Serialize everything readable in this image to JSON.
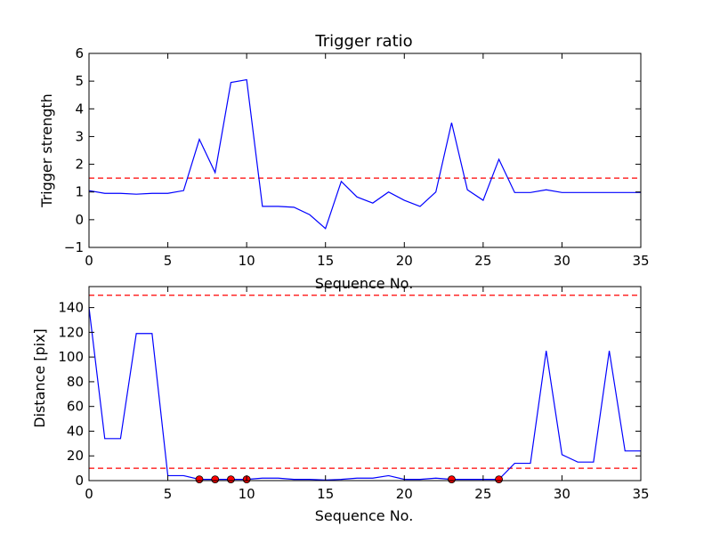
{
  "colors": {
    "line": "#0000ff",
    "threshold": "#ff0000",
    "marker": "#ff0000",
    "axes": "#000000"
  },
  "chart_data": [
    {
      "type": "line",
      "title": "Trigger ratio",
      "xlabel": "Sequence No.",
      "ylabel": "Trigger strength",
      "xlim": [
        0,
        35
      ],
      "ylim": [
        -1,
        6
      ],
      "xticks": [
        "0",
        "5",
        "10",
        "15",
        "20",
        "25",
        "30",
        "35"
      ],
      "yticks": [
        "−1",
        "0",
        "1",
        "2",
        "3",
        "4",
        "5",
        "6"
      ],
      "grid": false,
      "x": [
        0,
        1,
        2,
        3,
        4,
        5,
        6,
        7,
        8,
        9,
        10,
        11,
        12,
        13,
        14,
        15,
        16,
        17,
        18,
        19,
        20,
        21,
        22,
        23,
        24,
        25,
        26,
        27,
        28,
        29,
        30,
        31,
        32,
        33,
        34,
        35
      ],
      "values": [
        1.05,
        0.95,
        0.95,
        0.92,
        0.95,
        0.95,
        1.05,
        2.9,
        1.7,
        4.95,
        5.05,
        0.48,
        0.48,
        0.45,
        0.18,
        -0.32,
        1.38,
        0.82,
        0.6,
        1.0,
        0.7,
        0.48,
        1.0,
        3.5,
        1.08,
        0.7,
        2.18,
        0.98,
        0.98,
        1.08,
        0.98,
        0.98,
        0.98,
        0.98,
        0.98,
        0.98
      ],
      "threshold": 1.5
    },
    {
      "type": "line",
      "xlabel": "Sequence No.",
      "ylabel": "Distance [pix]",
      "xlim": [
        0,
        35
      ],
      "ylim": [
        0,
        157
      ],
      "xticks": [
        "0",
        "5",
        "10",
        "15",
        "20",
        "25",
        "30",
        "35"
      ],
      "yticks": [
        "0",
        "20",
        "40",
        "60",
        "80",
        "100",
        "120",
        "140"
      ],
      "grid": false,
      "x": [
        0,
        1,
        2,
        3,
        4,
        5,
        6,
        7,
        8,
        9,
        10,
        11,
        12,
        13,
        14,
        15,
        16,
        17,
        18,
        19,
        20,
        21,
        22,
        23,
        24,
        25,
        26,
        27,
        28,
        29,
        30,
        31,
        32,
        33,
        34,
        35
      ],
      "values": [
        140,
        34,
        34,
        119,
        119,
        4,
        4,
        1,
        1,
        1,
        1,
        2,
        2,
        1,
        1,
        0.5,
        1,
        2,
        2,
        4,
        1,
        1,
        2,
        1,
        1,
        1,
        1,
        14,
        14,
        105,
        21,
        15,
        15,
        105,
        24,
        24
      ],
      "thresholds": [
        150,
        10
      ],
      "markers": {
        "x": [
          7,
          8,
          9,
          10,
          23,
          26
        ],
        "values": [
          1,
          1,
          1,
          1,
          1,
          1
        ]
      }
    }
  ]
}
